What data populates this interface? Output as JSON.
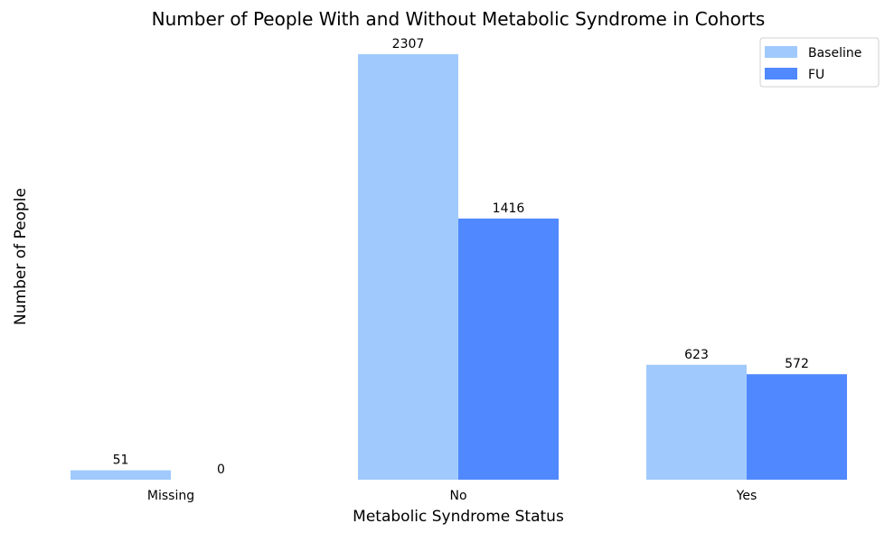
{
  "chart_data": {
    "type": "bar",
    "title": "Number of People With and Without Metabolic Syndrome in Cohorts",
    "xlabel": "Metabolic Syndrome Status",
    "ylabel": "Number of People",
    "categories": [
      "Missing",
      "No",
      "Yes"
    ],
    "series": [
      {
        "name": "Baseline",
        "values": [
          51,
          2307,
          623
        ],
        "color": "#a0cafd"
      },
      {
        "name": "FU",
        "values": [
          0,
          1416,
          572
        ],
        "color": "#5088ff"
      }
    ],
    "ylim": [
      0,
      2307
    ],
    "grid": false,
    "legend_position": "top-right",
    "y_axis_ticks_visible": false,
    "frame_visible": false
  }
}
